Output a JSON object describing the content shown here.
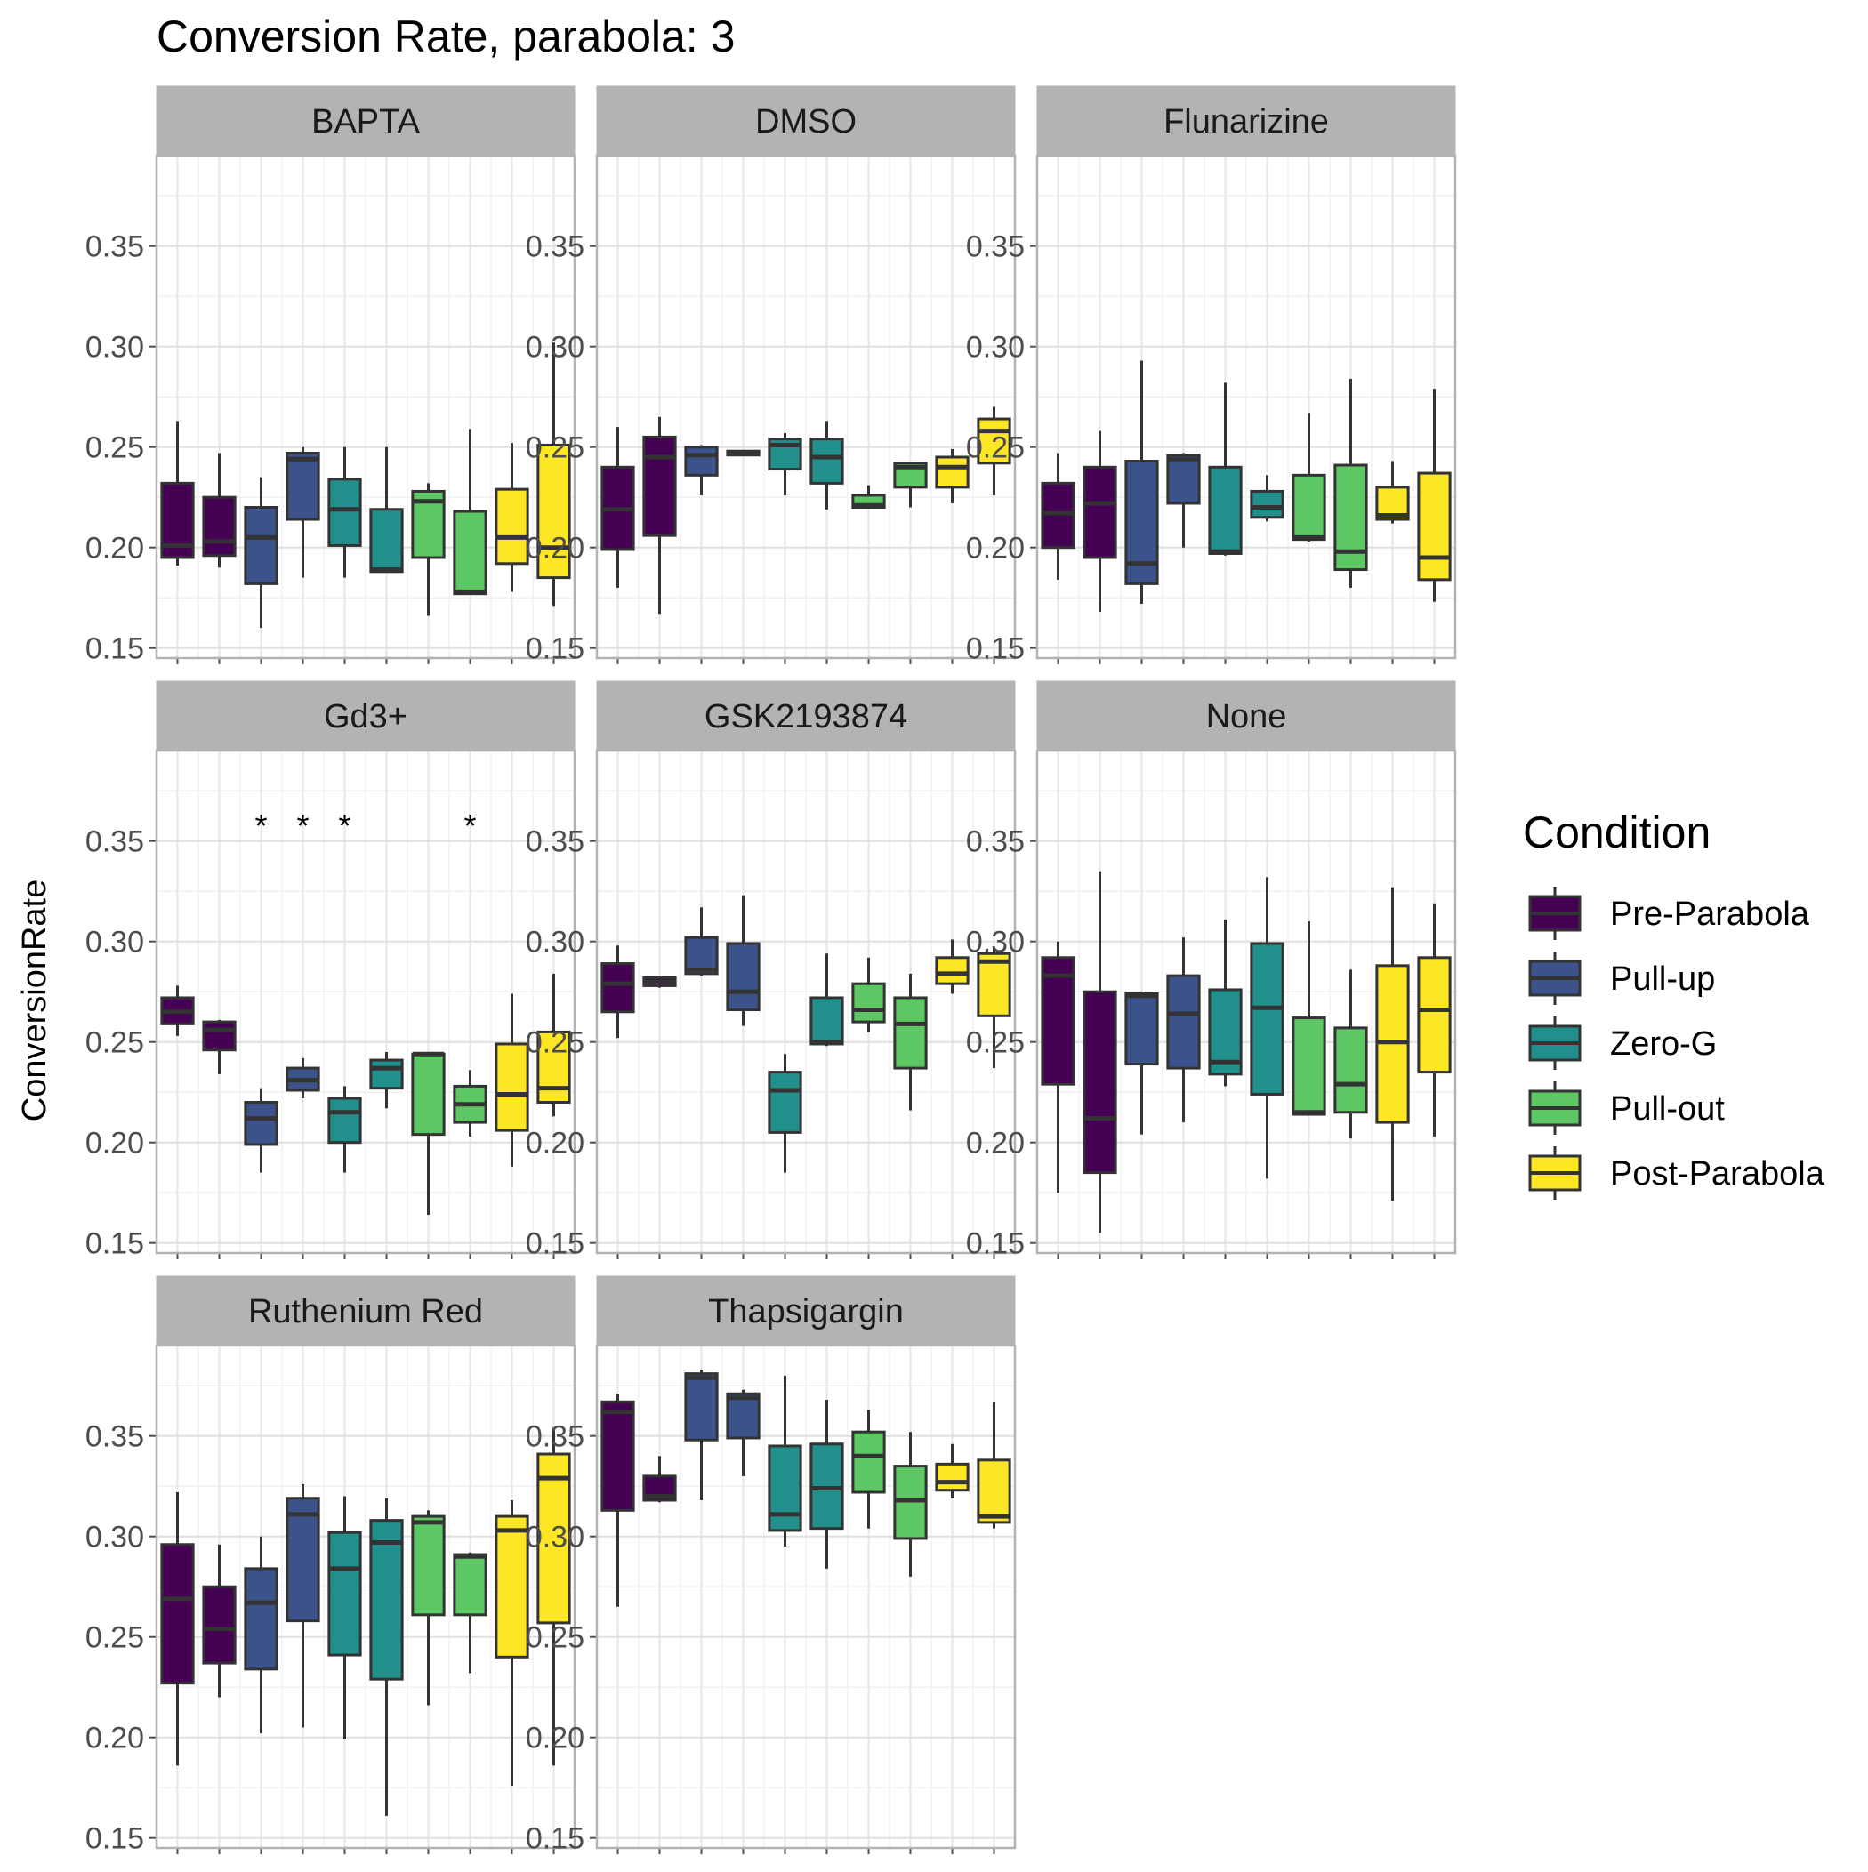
{
  "chart_data": {
    "type": "boxplot",
    "title": "Conversion Rate, parabola: 3",
    "ylabel": "ConversionRate",
    "xlabel": "",
    "ylim": [
      0.145,
      0.395
    ],
    "yticks": [
      0.15,
      0.2,
      0.25,
      0.3,
      0.35
    ],
    "ytick_labels": [
      "0.15",
      "0.20",
      "0.25",
      "0.30",
      "0.35"
    ],
    "grid": true,
    "facet_layout": "3 columns x 3 rows",
    "legend": {
      "title": "Condition",
      "position": "right",
      "entries": [
        {
          "label": "Pre-Parabola",
          "color": "#440154"
        },
        {
          "label": "Pull-up",
          "color": "#3B528B"
        },
        {
          "label": "Zero-G",
          "color": "#21908C"
        },
        {
          "label": "Pull-out",
          "color": "#5DC863"
        },
        {
          "label": "Post-Parabola",
          "color": "#FDE725"
        }
      ]
    },
    "box_colors": [
      "#440154",
      "#440154",
      "#3B528B",
      "#3B528B",
      "#21908C",
      "#21908C",
      "#5DC863",
      "#5DC863",
      "#FDE725",
      "#FDE725"
    ],
    "panels": [
      {
        "name": "BAPTA",
        "boxes": [
          {
            "lo": 0.191,
            "q1": 0.195,
            "med": 0.201,
            "q3": 0.232,
            "hi": 0.263
          },
          {
            "lo": 0.19,
            "q1": 0.196,
            "med": 0.203,
            "q3": 0.225,
            "hi": 0.247
          },
          {
            "lo": 0.16,
            "q1": 0.182,
            "med": 0.205,
            "q3": 0.22,
            "hi": 0.235
          },
          {
            "lo": 0.185,
            "q1": 0.214,
            "med": 0.244,
            "q3": 0.247,
            "hi": 0.25
          },
          {
            "lo": 0.185,
            "q1": 0.201,
            "med": 0.219,
            "q3": 0.234,
            "hi": 0.25
          },
          {
            "lo": 0.188,
            "q1": 0.188,
            "med": 0.189,
            "q3": 0.219,
            "hi": 0.25
          },
          {
            "lo": 0.166,
            "q1": 0.195,
            "med": 0.223,
            "q3": 0.228,
            "hi": 0.232
          },
          {
            "lo": 0.177,
            "q1": 0.177,
            "med": 0.178,
            "q3": 0.218,
            "hi": 0.259
          },
          {
            "lo": 0.178,
            "q1": 0.192,
            "med": 0.205,
            "q3": 0.229,
            "hi": 0.252
          },
          {
            "lo": 0.171,
            "q1": 0.185,
            "med": 0.2,
            "q3": 0.251,
            "hi": 0.302
          }
        ],
        "annotations": []
      },
      {
        "name": "DMSO",
        "boxes": [
          {
            "lo": 0.18,
            "q1": 0.199,
            "med": 0.219,
            "q3": 0.24,
            "hi": 0.26
          },
          {
            "lo": 0.167,
            "q1": 0.206,
            "med": 0.245,
            "q3": 0.255,
            "hi": 0.265
          },
          {
            "lo": 0.226,
            "q1": 0.236,
            "med": 0.246,
            "q3": 0.25,
            "hi": 0.251
          },
          {
            "lo": 0.246,
            "q1": 0.246,
            "med": 0.247,
            "q3": 0.248,
            "hi": 0.248
          },
          {
            "lo": 0.226,
            "q1": 0.239,
            "med": 0.251,
            "q3": 0.254,
            "hi": 0.257
          },
          {
            "lo": 0.219,
            "q1": 0.232,
            "med": 0.245,
            "q3": 0.254,
            "hi": 0.263
          },
          {
            "lo": 0.22,
            "q1": 0.22,
            "med": 0.221,
            "q3": 0.226,
            "hi": 0.231
          },
          {
            "lo": 0.22,
            "q1": 0.23,
            "med": 0.24,
            "q3": 0.242,
            "hi": 0.242
          },
          {
            "lo": 0.222,
            "q1": 0.23,
            "med": 0.24,
            "q3": 0.245,
            "hi": 0.249
          },
          {
            "lo": 0.226,
            "q1": 0.242,
            "med": 0.258,
            "q3": 0.264,
            "hi": 0.27
          }
        ],
        "annotations": []
      },
      {
        "name": "Flunarizine",
        "boxes": [
          {
            "lo": 0.184,
            "q1": 0.2,
            "med": 0.217,
            "q3": 0.232,
            "hi": 0.247
          },
          {
            "lo": 0.168,
            "q1": 0.195,
            "med": 0.222,
            "q3": 0.24,
            "hi": 0.258
          },
          {
            "lo": 0.172,
            "q1": 0.182,
            "med": 0.192,
            "q3": 0.243,
            "hi": 0.293
          },
          {
            "lo": 0.2,
            "q1": 0.222,
            "med": 0.244,
            "q3": 0.246,
            "hi": 0.247
          },
          {
            "lo": 0.196,
            "q1": 0.197,
            "med": 0.198,
            "q3": 0.24,
            "hi": 0.282
          },
          {
            "lo": 0.213,
            "q1": 0.215,
            "med": 0.22,
            "q3": 0.228,
            "hi": 0.236
          },
          {
            "lo": 0.203,
            "q1": 0.204,
            "med": 0.205,
            "q3": 0.236,
            "hi": 0.267
          },
          {
            "lo": 0.18,
            "q1": 0.189,
            "med": 0.198,
            "q3": 0.241,
            "hi": 0.284
          },
          {
            "lo": 0.212,
            "q1": 0.214,
            "med": 0.216,
            "q3": 0.23,
            "hi": 0.243
          },
          {
            "lo": 0.173,
            "q1": 0.184,
            "med": 0.195,
            "q3": 0.237,
            "hi": 0.279
          }
        ],
        "annotations": []
      },
      {
        "name": "Gd3+",
        "boxes": [
          {
            "lo": 0.253,
            "q1": 0.259,
            "med": 0.265,
            "q3": 0.272,
            "hi": 0.278
          },
          {
            "lo": 0.234,
            "q1": 0.246,
            "med": 0.256,
            "q3": 0.26,
            "hi": 0.261
          },
          {
            "lo": 0.185,
            "q1": 0.199,
            "med": 0.212,
            "q3": 0.22,
            "hi": 0.227
          },
          {
            "lo": 0.222,
            "q1": 0.226,
            "med": 0.231,
            "q3": 0.237,
            "hi": 0.242
          },
          {
            "lo": 0.185,
            "q1": 0.2,
            "med": 0.215,
            "q3": 0.222,
            "hi": 0.228
          },
          {
            "lo": 0.217,
            "q1": 0.227,
            "med": 0.237,
            "q3": 0.241,
            "hi": 0.245
          },
          {
            "lo": 0.164,
            "q1": 0.204,
            "med": 0.244,
            "q3": 0.244,
            "hi": 0.245
          },
          {
            "lo": 0.203,
            "q1": 0.21,
            "med": 0.219,
            "q3": 0.228,
            "hi": 0.236
          },
          {
            "lo": 0.188,
            "q1": 0.206,
            "med": 0.224,
            "q3": 0.249,
            "hi": 0.274
          },
          {
            "lo": 0.213,
            "q1": 0.22,
            "med": 0.227,
            "q3": 0.255,
            "hi": 0.284
          }
        ],
        "annotations": [
          {
            "box": 3,
            "text": "*"
          },
          {
            "box": 4,
            "text": "*"
          },
          {
            "box": 5,
            "text": "*"
          },
          {
            "box": 8,
            "text": "*"
          }
        ]
      },
      {
        "name": "GSK2193874",
        "boxes": [
          {
            "lo": 0.252,
            "q1": 0.265,
            "med": 0.279,
            "q3": 0.289,
            "hi": 0.298
          },
          {
            "lo": 0.277,
            "q1": 0.278,
            "med": 0.28,
            "q3": 0.282,
            "hi": 0.283
          },
          {
            "lo": 0.283,
            "q1": 0.284,
            "med": 0.286,
            "q3": 0.302,
            "hi": 0.317
          },
          {
            "lo": 0.258,
            "q1": 0.266,
            "med": 0.275,
            "q3": 0.299,
            "hi": 0.323
          },
          {
            "lo": 0.185,
            "q1": 0.205,
            "med": 0.226,
            "q3": 0.235,
            "hi": 0.244
          },
          {
            "lo": 0.248,
            "q1": 0.249,
            "med": 0.25,
            "q3": 0.272,
            "hi": 0.294
          },
          {
            "lo": 0.255,
            "q1": 0.26,
            "med": 0.266,
            "q3": 0.279,
            "hi": 0.292
          },
          {
            "lo": 0.216,
            "q1": 0.237,
            "med": 0.259,
            "q3": 0.272,
            "hi": 0.284
          },
          {
            "lo": 0.274,
            "q1": 0.279,
            "med": 0.284,
            "q3": 0.292,
            "hi": 0.301
          },
          {
            "lo": 0.237,
            "q1": 0.263,
            "med": 0.29,
            "q3": 0.294,
            "hi": 0.297
          }
        ],
        "annotations": []
      },
      {
        "name": "None",
        "boxes": [
          {
            "lo": 0.175,
            "q1": 0.229,
            "med": 0.283,
            "q3": 0.292,
            "hi": 0.3
          },
          {
            "lo": 0.155,
            "q1": 0.185,
            "med": 0.212,
            "q3": 0.275,
            "hi": 0.335
          },
          {
            "lo": 0.204,
            "q1": 0.239,
            "med": 0.273,
            "q3": 0.274,
            "hi": 0.275
          },
          {
            "lo": 0.21,
            "q1": 0.237,
            "med": 0.264,
            "q3": 0.283,
            "hi": 0.302
          },
          {
            "lo": 0.228,
            "q1": 0.234,
            "med": 0.24,
            "q3": 0.276,
            "hi": 0.311
          },
          {
            "lo": 0.182,
            "q1": 0.224,
            "med": 0.267,
            "q3": 0.299,
            "hi": 0.332
          },
          {
            "lo": 0.214,
            "q1": 0.214,
            "med": 0.215,
            "q3": 0.262,
            "hi": 0.31
          },
          {
            "lo": 0.202,
            "q1": 0.215,
            "med": 0.229,
            "q3": 0.257,
            "hi": 0.286
          },
          {
            "lo": 0.171,
            "q1": 0.21,
            "med": 0.25,
            "q3": 0.288,
            "hi": 0.327
          },
          {
            "lo": 0.203,
            "q1": 0.235,
            "med": 0.266,
            "q3": 0.292,
            "hi": 0.319
          }
        ],
        "annotations": []
      },
      {
        "name": "Ruthenium Red",
        "boxes": [
          {
            "lo": 0.186,
            "q1": 0.227,
            "med": 0.269,
            "q3": 0.296,
            "hi": 0.322
          },
          {
            "lo": 0.22,
            "q1": 0.237,
            "med": 0.254,
            "q3": 0.275,
            "hi": 0.296
          },
          {
            "lo": 0.202,
            "q1": 0.234,
            "med": 0.267,
            "q3": 0.284,
            "hi": 0.3
          },
          {
            "lo": 0.205,
            "q1": 0.258,
            "med": 0.311,
            "q3": 0.319,
            "hi": 0.326
          },
          {
            "lo": 0.199,
            "q1": 0.241,
            "med": 0.284,
            "q3": 0.302,
            "hi": 0.32
          },
          {
            "lo": 0.161,
            "q1": 0.229,
            "med": 0.297,
            "q3": 0.308,
            "hi": 0.319
          },
          {
            "lo": 0.216,
            "q1": 0.261,
            "med": 0.307,
            "q3": 0.31,
            "hi": 0.313
          },
          {
            "lo": 0.232,
            "q1": 0.261,
            "med": 0.29,
            "q3": 0.291,
            "hi": 0.292
          },
          {
            "lo": 0.176,
            "q1": 0.24,
            "med": 0.303,
            "q3": 0.31,
            "hi": 0.318
          },
          {
            "lo": 0.186,
            "q1": 0.257,
            "med": 0.329,
            "q3": 0.341,
            "hi": 0.354
          }
        ],
        "annotations": []
      },
      {
        "name": "Thapsigargin",
        "boxes": [
          {
            "lo": 0.265,
            "q1": 0.313,
            "med": 0.362,
            "q3": 0.367,
            "hi": 0.371
          },
          {
            "lo": 0.317,
            "q1": 0.318,
            "med": 0.32,
            "q3": 0.33,
            "hi": 0.34
          },
          {
            "lo": 0.318,
            "q1": 0.348,
            "med": 0.379,
            "q3": 0.381,
            "hi": 0.383
          },
          {
            "lo": 0.33,
            "q1": 0.349,
            "med": 0.369,
            "q3": 0.371,
            "hi": 0.373
          },
          {
            "lo": 0.295,
            "q1": 0.303,
            "med": 0.311,
            "q3": 0.345,
            "hi": 0.38
          },
          {
            "lo": 0.284,
            "q1": 0.304,
            "med": 0.324,
            "q3": 0.346,
            "hi": 0.368
          },
          {
            "lo": 0.304,
            "q1": 0.322,
            "med": 0.34,
            "q3": 0.352,
            "hi": 0.363
          },
          {
            "lo": 0.28,
            "q1": 0.299,
            "med": 0.318,
            "q3": 0.335,
            "hi": 0.352
          },
          {
            "lo": 0.319,
            "q1": 0.323,
            "med": 0.327,
            "q3": 0.336,
            "hi": 0.346
          },
          {
            "lo": 0.304,
            "q1": 0.307,
            "med": 0.31,
            "q3": 0.338,
            "hi": 0.367
          }
        ],
        "annotations": []
      }
    ]
  }
}
